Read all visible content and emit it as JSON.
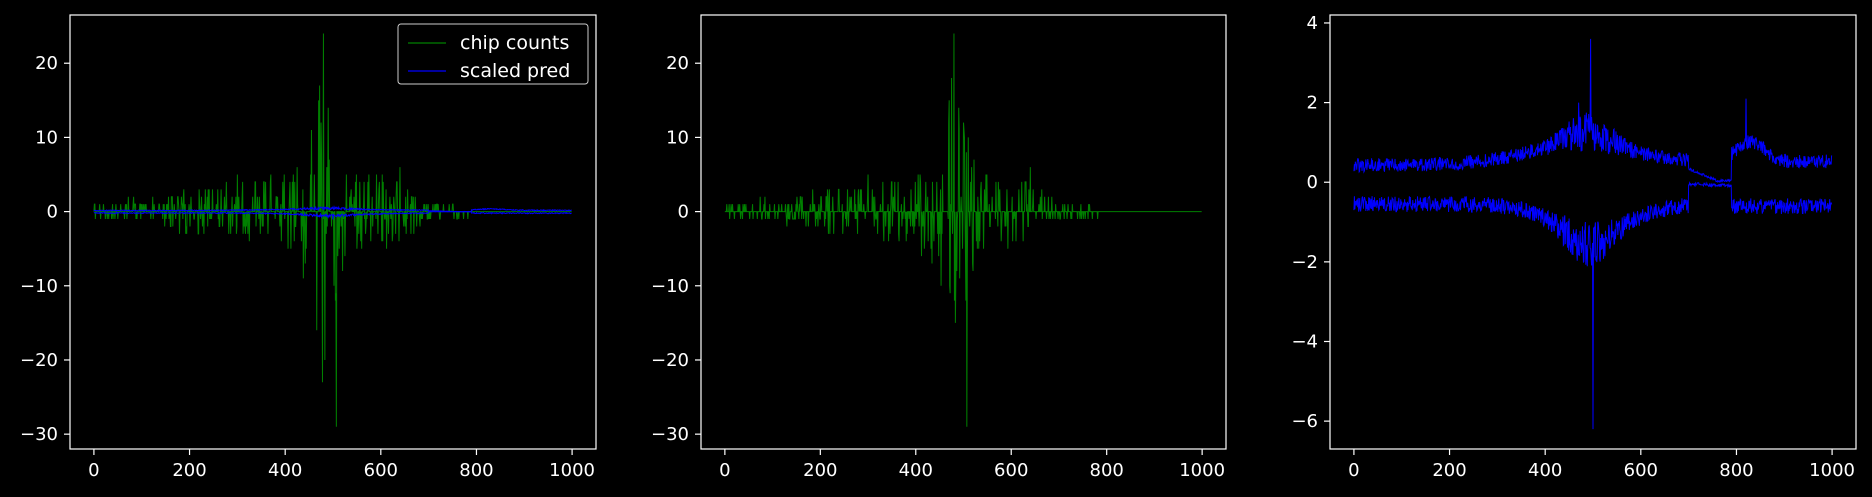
{
  "figure": {
    "background": "#000000",
    "foreground": "#ffffff"
  },
  "chart_data": [
    {
      "type": "line",
      "xlim": [
        -50,
        1050
      ],
      "ylim": [
        -32,
        26.5
      ],
      "xticks": [
        0,
        200,
        400,
        600,
        800,
        1000
      ],
      "yticks": [
        -30,
        -20,
        -10,
        0,
        10,
        20
      ],
      "legend": {
        "position": "top-right",
        "entries": [
          "chip counts",
          "scaled pred"
        ]
      },
      "series": [
        {
          "name": "chip counts",
          "color": "#008000",
          "kind": "counts",
          "n": 1000,
          "envelope": [
            [
              0,
              1
            ],
            [
              50,
              1.5
            ],
            [
              150,
              2
            ],
            [
              200,
              3
            ],
            [
              300,
              4
            ],
            [
              400,
              5
            ],
            [
              450,
              10
            ],
            [
              480,
              24
            ],
            [
              500,
              12
            ],
            [
              530,
              6
            ],
            [
              600,
              5
            ],
            [
              650,
              4
            ],
            [
              700,
              1
            ],
            [
              800,
              0.5
            ],
            [
              1000,
              0.5
            ]
          ],
          "peaks": [
            [
              480,
              24
            ],
            [
              470,
              15
            ],
            [
              490,
              14
            ],
            [
              507,
              -29
            ],
            [
              505,
              -12
            ],
            [
              520,
              -8
            ],
            [
              640,
              6
            ],
            [
              300,
              5
            ],
            [
              410,
              4
            ]
          ]
        },
        {
          "name": "scaled pred",
          "color": "#0000ff",
          "kind": "pred",
          "n": 1000,
          "scale": 0.35,
          "peaks": [
            [
              500,
              -3
            ]
          ]
        }
      ]
    },
    {
      "type": "line",
      "xlim": [
        -50,
        1050
      ],
      "ylim": [
        -32,
        26.5
      ],
      "xticks": [
        0,
        200,
        400,
        600,
        800,
        1000
      ],
      "yticks": [
        -30,
        -20,
        -10,
        0,
        10,
        20
      ],
      "series": [
        {
          "color": "#008000",
          "kind": "counts",
          "n": 1000,
          "envelope": [
            [
              0,
              1
            ],
            [
              50,
              1.5
            ],
            [
              150,
              2
            ],
            [
              200,
              3
            ],
            [
              300,
              4
            ],
            [
              400,
              5
            ],
            [
              450,
              10
            ],
            [
              480,
              24
            ],
            [
              500,
              12
            ],
            [
              530,
              6
            ],
            [
              600,
              5
            ],
            [
              650,
              4
            ],
            [
              700,
              1
            ],
            [
              800,
              0.5
            ],
            [
              1000,
              0.5
            ]
          ],
          "peaks": [
            [
              480,
              24
            ],
            [
              470,
              15
            ],
            [
              490,
              14
            ],
            [
              507,
              -29
            ],
            [
              505,
              -12
            ],
            [
              520,
              -8
            ],
            [
              640,
              6
            ],
            [
              300,
              5
            ],
            [
              410,
              4
            ]
          ]
        }
      ]
    },
    {
      "type": "line",
      "xlim": [
        -50,
        1050
      ],
      "ylim": [
        -6.7,
        4.2
      ],
      "xticks": [
        0,
        200,
        400,
        600,
        800,
        1000
      ],
      "yticks": [
        -6,
        -4,
        -2,
        0,
        2,
        4
      ],
      "series": [
        {
          "color": "#0000ff",
          "kind": "pred",
          "n": 1000,
          "scale": 1,
          "peaks": [
            [
              495,
              3.6
            ],
            [
              500,
              -6.2
            ],
            [
              820,
              2.1
            ],
            [
              470,
              2.0
            ]
          ]
        }
      ]
    }
  ]
}
